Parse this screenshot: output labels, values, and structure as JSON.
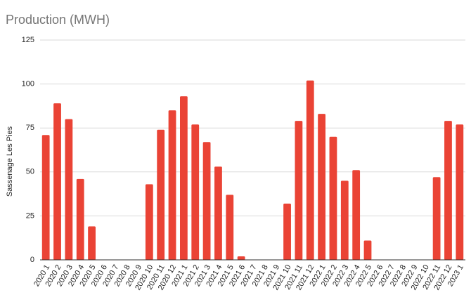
{
  "chart_data": {
    "type": "bar",
    "title": "Production (MWH)",
    "y_label": "Sassenage Les Pies",
    "categories": [
      "2020 1",
      "2020 2",
      "2020 3",
      "2020 4",
      "2020 5",
      "2020 6",
      "2020 7",
      "2020 8",
      "2020 9",
      "2020 10",
      "2020 11",
      "2020 12",
      "2021 1",
      "2021 2",
      "2021 3",
      "2021 4",
      "2021 5",
      "2021 6",
      "2021 7",
      "2021 8",
      "2021 9",
      "2021 10",
      "2021 11",
      "2021 12",
      "2022 1",
      "2022 2",
      "2022 3",
      "2022 4",
      "2022 5",
      "2022 6",
      "2022 7",
      "2022 8",
      "2022 9",
      "2022 10",
      "2022 11",
      "2022 12",
      "2023 1"
    ],
    "values": [
      71,
      89,
      80,
      46,
      19,
      0,
      0,
      0,
      0,
      43,
      74,
      85,
      93,
      77,
      67,
      53,
      37,
      2,
      0,
      0,
      0,
      32,
      79,
      102,
      83,
      70,
      45,
      51,
      11,
      0,
      0,
      0,
      0,
      0,
      47,
      79,
      77
    ],
    "color": "#ea4335",
    "ylim": [
      0,
      125
    ],
    "yticks": [
      0,
      25,
      50,
      75,
      100,
      125
    ],
    "grid": true
  }
}
